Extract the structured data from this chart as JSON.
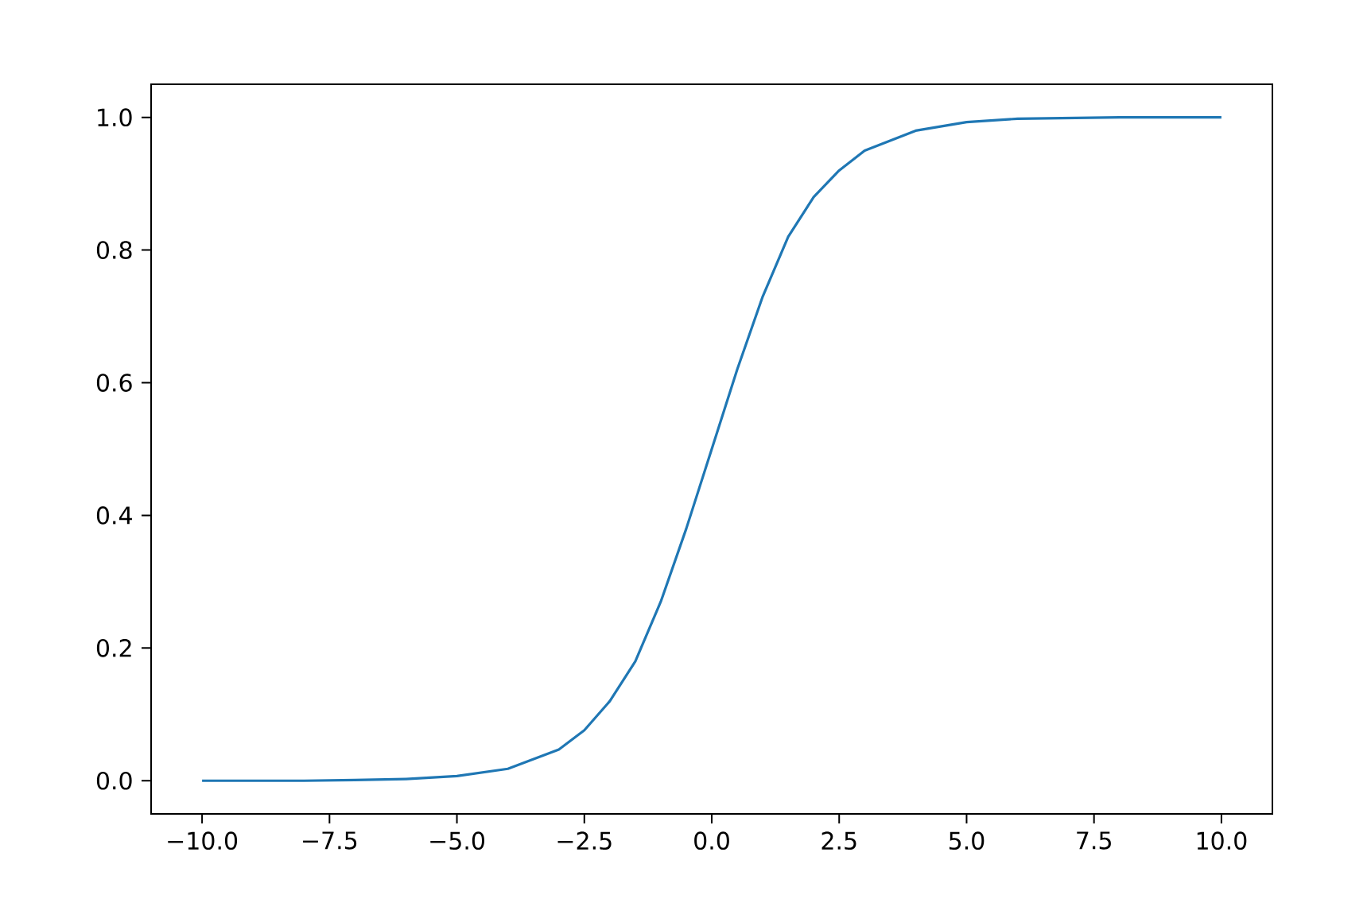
{
  "chart_data": {
    "type": "line",
    "x": [
      -10,
      -9,
      -8,
      -7,
      -6,
      -5,
      -4,
      -3,
      -2.5,
      -2,
      -1.5,
      -1,
      -0.5,
      0,
      0.5,
      1,
      1.5,
      2,
      2.5,
      3,
      4,
      5,
      6,
      7,
      8,
      9,
      10
    ],
    "series": [
      {
        "color": "#1f77b4",
        "values": [
          0.0,
          0.0,
          0.0,
          0.001,
          0.0025,
          0.007,
          0.018,
          0.047,
          0.076,
          0.12,
          0.18,
          0.27,
          0.38,
          0.5,
          0.62,
          0.73,
          0.82,
          0.88,
          0.92,
          0.95,
          0.98,
          0.993,
          0.998,
          0.999,
          1.0,
          1.0,
          1.0
        ]
      }
    ],
    "xlim": [
      -11,
      11
    ],
    "ylim": [
      -0.05,
      1.05
    ],
    "xticks": [
      {
        "value": -10,
        "label": "−10.0"
      },
      {
        "value": -7.5,
        "label": "−7.5"
      },
      {
        "value": -5,
        "label": "−5.0"
      },
      {
        "value": -2.5,
        "label": "−2.5"
      },
      {
        "value": 0,
        "label": "0.0"
      },
      {
        "value": 2.5,
        "label": "2.5"
      },
      {
        "value": 5,
        "label": "5.0"
      },
      {
        "value": 7.5,
        "label": "7.5"
      },
      {
        "value": 10,
        "label": "10.0"
      }
    ],
    "yticks": [
      {
        "value": 0,
        "label": "0.0"
      },
      {
        "value": 0.2,
        "label": "0.2"
      },
      {
        "value": 0.4,
        "label": "0.4"
      },
      {
        "value": 0.6,
        "label": "0.6"
      },
      {
        "value": 0.8,
        "label": "0.8"
      },
      {
        "value": 1.0,
        "label": "1.0"
      }
    ]
  }
}
